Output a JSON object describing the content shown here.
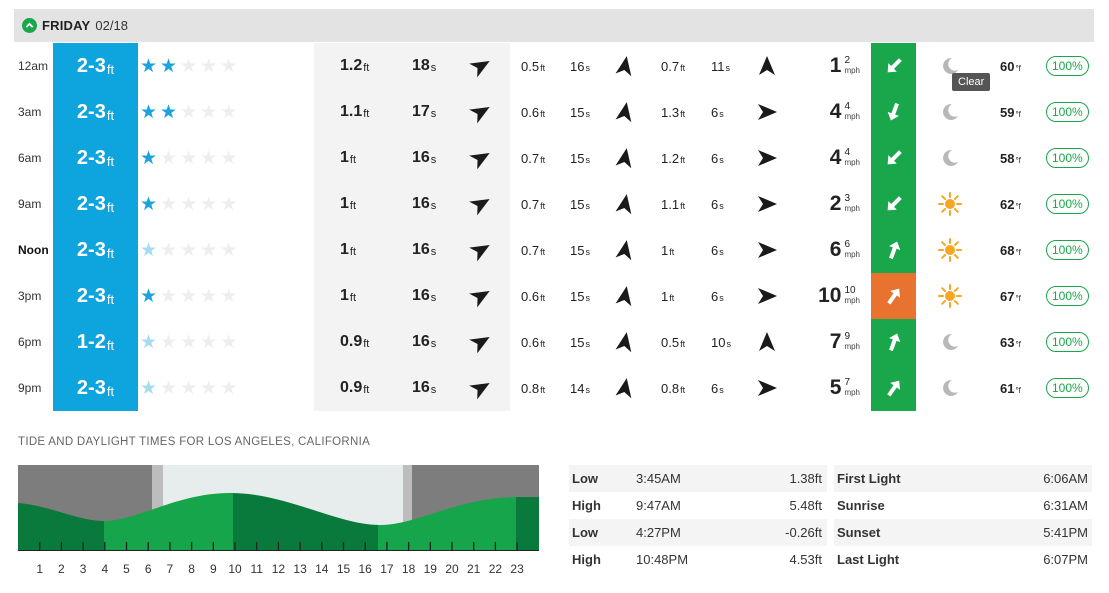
{
  "day": {
    "name": "FRIDAY",
    "date": "02/18"
  },
  "tooltip": "Clear",
  "rows": [
    {
      "time": "12am",
      "bold": false,
      "surf": "2-3",
      "surf_unit": "ft",
      "stars": 2,
      "star_faint": false,
      "primary_height": "1.2",
      "primary_period": "18",
      "s2_height": "0.5",
      "s2_period": "16",
      "s3_height": "0.7",
      "s3_period": "11",
      "wind": "1",
      "gust": "2",
      "wind_unit": "mph",
      "wind_color": "#1aa64b",
      "weather": "moon",
      "temp": "60",
      "prob": "100%"
    },
    {
      "time": "3am",
      "bold": false,
      "surf": "2-3",
      "surf_unit": "ft",
      "stars": 2,
      "star_faint": false,
      "primary_height": "1.1",
      "primary_period": "17",
      "s2_height": "0.6",
      "s2_period": "15",
      "s3_height": "1.3",
      "s3_period": "6",
      "wind": "4",
      "gust": "4",
      "wind_unit": "mph",
      "wind_color": "#1aa64b",
      "weather": "moon",
      "temp": "59",
      "prob": "100%"
    },
    {
      "time": "6am",
      "bold": false,
      "surf": "2-3",
      "surf_unit": "ft",
      "stars": 1,
      "star_faint": false,
      "primary_height": "1",
      "primary_period": "16",
      "s2_height": "0.7",
      "s2_period": "15",
      "s3_height": "1.2",
      "s3_period": "6",
      "wind": "4",
      "gust": "4",
      "wind_unit": "mph",
      "wind_color": "#1aa64b",
      "weather": "moon",
      "temp": "58",
      "prob": "100%"
    },
    {
      "time": "9am",
      "bold": false,
      "surf": "2-3",
      "surf_unit": "ft",
      "stars": 1,
      "star_faint": false,
      "primary_height": "1",
      "primary_period": "16",
      "s2_height": "0.7",
      "s2_period": "15",
      "s3_height": "1.1",
      "s3_period": "6",
      "wind": "2",
      "gust": "3",
      "wind_unit": "mph",
      "wind_color": "#1aa64b",
      "weather": "sun",
      "temp": "62",
      "prob": "100%"
    },
    {
      "time": "Noon",
      "bold": true,
      "surf": "2-3",
      "surf_unit": "ft",
      "stars": 1,
      "star_faint": true,
      "primary_height": "1",
      "primary_period": "16",
      "s2_height": "0.7",
      "s2_period": "15",
      "s3_height": "1",
      "s3_period": "6",
      "wind": "6",
      "gust": "6",
      "wind_unit": "mph",
      "wind_color": "#1aa64b",
      "weather": "sun",
      "temp": "68",
      "prob": "100%"
    },
    {
      "time": "3pm",
      "bold": false,
      "surf": "2-3",
      "surf_unit": "ft",
      "stars": 1,
      "star_faint": false,
      "primary_height": "1",
      "primary_period": "16",
      "s2_height": "0.6",
      "s2_period": "15",
      "s3_height": "1",
      "s3_period": "6",
      "wind": "10",
      "gust": "10",
      "wind_unit": "mph",
      "wind_color": "#e8732e",
      "weather": "sun",
      "temp": "67",
      "prob": "100%"
    },
    {
      "time": "6pm",
      "bold": false,
      "surf": "1-2",
      "surf_unit": "ft",
      "stars": 1,
      "star_faint": true,
      "primary_height": "0.9",
      "primary_period": "16",
      "s2_height": "0.6",
      "s2_period": "15",
      "s3_height": "0.5",
      "s3_period": "10",
      "wind": "7",
      "gust": "9",
      "wind_unit": "mph",
      "wind_color": "#1aa64b",
      "weather": "moon",
      "temp": "63",
      "prob": "100%"
    },
    {
      "time": "9pm",
      "bold": false,
      "surf": "2-3",
      "surf_unit": "ft",
      "stars": 1,
      "star_faint": true,
      "primary_height": "0.9",
      "primary_period": "16",
      "s2_height": "0.8",
      "s2_period": "14",
      "s3_height": "0.8",
      "s3_period": "6",
      "wind": "5",
      "gust": "7",
      "wind_unit": "mph",
      "wind_color": "#1aa64b",
      "weather": "moon",
      "temp": "61",
      "prob": "100%"
    }
  ],
  "units": {
    "ft": "ft",
    "s": "s",
    "temp": "°f"
  },
  "tide": {
    "title": "TIDE AND DAYLIGHT TIMES FOR LOS ANGELES, CALIFORNIA",
    "hours": [
      "1",
      "2",
      "3",
      "4",
      "5",
      "6",
      "7",
      "8",
      "9",
      "10",
      "11",
      "12",
      "13",
      "14",
      "15",
      "16",
      "17",
      "18",
      "19",
      "20",
      "21",
      "22",
      "23"
    ],
    "table": [
      {
        "type": "Low",
        "time": "3:45AM",
        "height": "1.38ft"
      },
      {
        "type": "High",
        "time": "9:47AM",
        "height": "5.48ft"
      },
      {
        "type": "Low",
        "time": "4:27PM",
        "height": "-0.26ft"
      },
      {
        "type": "High",
        "time": "10:48PM",
        "height": "4.53ft"
      }
    ],
    "light": [
      {
        "name": "First Light",
        "time": "6:06AM"
      },
      {
        "name": "Sunrise",
        "time": "6:31AM"
      },
      {
        "name": "Sunset",
        "time": "5:41PM"
      },
      {
        "name": "Last Light",
        "time": "6:07PM"
      }
    ]
  }
}
